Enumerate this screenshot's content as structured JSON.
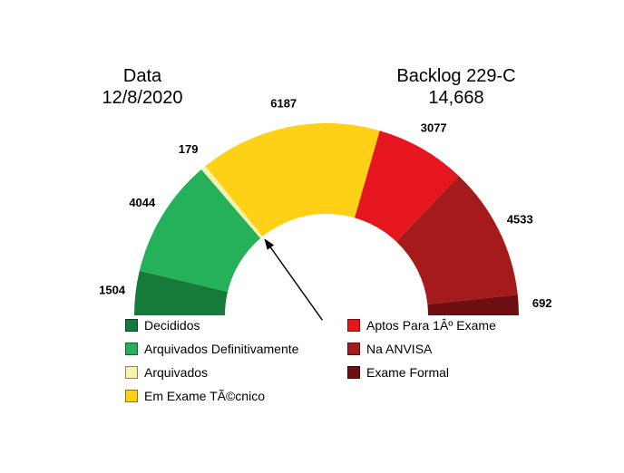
{
  "header": {
    "left_title": "Data",
    "left_subtitle": "12/8/2020",
    "right_title": "Backlog 229-C",
    "right_subtitle": "14,668"
  },
  "chart_data": {
    "type": "pie",
    "subtype": "half-donut-gauge",
    "title": "Backlog 229-C",
    "total_label": "14,668",
    "date_label": "12/8/2020",
    "categories": [
      "Decididos",
      "Arquivados Definitivamente",
      "Arquivados",
      "Em Exame TÃ©cnico",
      "Aptos Para 1Âº Exame",
      "Na ANVISA",
      "Exame Formal"
    ],
    "values": [
      1504,
      4044,
      179,
      6187,
      3077,
      4533,
      692
    ],
    "colors": [
      "#157a3a",
      "#24b15a",
      "#f7f2ae",
      "#fed116",
      "#e5161d",
      "#a51b1b",
      "#700f12"
    ],
    "start_angle": 180,
    "end_angle": 0,
    "legend_position": "bottom-two-columns",
    "legend_split_index": 4,
    "annotation": {
      "type": "arrow",
      "points_to": "inner arc boundary between Arquivados and Em Exame TÃ©cnico",
      "boundary_index": 3
    }
  }
}
